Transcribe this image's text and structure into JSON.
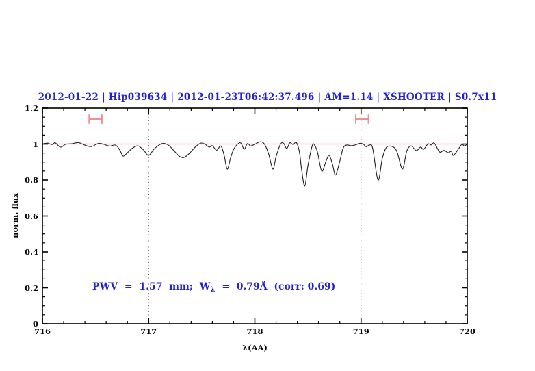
{
  "header": {
    "title": "2012-01-22 | Hip039634 | 2012-01-23T06:42:37.496 | AM=1.14 | XSHOOTER | S0.7x11",
    "color": "#2222cc"
  },
  "annotation": {
    "prefix": "PWV  =  1.57  mm;  W",
    "sub": "λ",
    "suffix": "  =  0.79Å  (corr: 0.69)",
    "color": "#2222cc"
  },
  "chart_data": {
    "type": "line",
    "title": "2012-01-22 | Hip039634 | 2012-01-23T06:42:37.496 | AM=1.14 | XSHOOTER | S0.7x11",
    "xlabel": "λ(AA)",
    "ylabel": "norm. flux",
    "xlim": [
      716,
      720
    ],
    "ylim": [
      0,
      1.2
    ],
    "grid": false,
    "x_ticks": [
      {
        "value": 716,
        "label": "716"
      },
      {
        "value": 717,
        "label": "717"
      },
      {
        "value": 718,
        "label": "718"
      },
      {
        "value": 719,
        "label": "719"
      },
      {
        "value": 720,
        "label": "720"
      }
    ],
    "x_minor_step": 0.2,
    "y_ticks": [
      {
        "value": 0,
        "label": "0"
      },
      {
        "value": 0.2,
        "label": "0.2"
      },
      {
        "value": 0.4,
        "label": "0.4"
      },
      {
        "value": 0.6,
        "label": "0.6"
      },
      {
        "value": 0.8,
        "label": "0.8"
      },
      {
        "value": 1,
        "label": "1"
      },
      {
        "value": 1.2,
        "label": "1.2"
      }
    ],
    "y_minor_step": 0.05,
    "dotted_vlines": {
      "x": [
        717,
        719
      ],
      "color": "#444444"
    },
    "continuum_line": {
      "y": 1.0,
      "color": "#f08080"
    },
    "range_markers": {
      "color": "#f09090",
      "y": 1.139,
      "cap_half_height": 0.026,
      "items": [
        {
          "x1": 716.44,
          "x2": 716.56
        },
        {
          "x1": 718.95,
          "x2": 719.07
        }
      ]
    },
    "series": [
      {
        "name": "normalized-telluric-spectrum",
        "color": "#1c1c1c",
        "points": [
          [
            716.0,
            1.0
          ],
          [
            716.05,
            1.005
          ],
          [
            716.09,
            0.997
          ],
          [
            716.12,
            1.007
          ],
          [
            716.17,
            0.983
          ],
          [
            716.22,
            0.999
          ],
          [
            716.28,
            1.002
          ],
          [
            716.34,
            1.008
          ],
          [
            716.4,
            0.994
          ],
          [
            716.46,
            0.986
          ],
          [
            716.53,
            1.004
          ],
          [
            716.58,
            0.998
          ],
          [
            716.63,
            0.989
          ],
          [
            716.69,
            0.994
          ],
          [
            716.73,
            0.965
          ],
          [
            716.76,
            0.933
          ],
          [
            716.8,
            0.952
          ],
          [
            716.85,
            0.978
          ],
          [
            716.9,
            0.99
          ],
          [
            716.95,
            0.968
          ],
          [
            717.0,
            0.937
          ],
          [
            717.05,
            0.972
          ],
          [
            717.1,
            0.995
          ],
          [
            717.14,
            1.004
          ],
          [
            717.19,
            0.992
          ],
          [
            717.24,
            0.962
          ],
          [
            717.29,
            0.932
          ],
          [
            717.33,
            0.925
          ],
          [
            717.38,
            0.946
          ],
          [
            717.44,
            0.984
          ],
          [
            717.49,
            1.005
          ],
          [
            717.53,
            1.0
          ],
          [
            717.57,
            0.983
          ],
          [
            717.6,
            0.991
          ],
          [
            717.64,
            0.966
          ],
          [
            717.68,
            0.989
          ],
          [
            717.71,
            0.94
          ],
          [
            717.74,
            0.861
          ],
          [
            717.77,
            0.92
          ],
          [
            717.8,
            0.97
          ],
          [
            717.84,
            1.001
          ],
          [
            717.87,
            1.005
          ],
          [
            717.9,
            0.971
          ],
          [
            717.93,
            1.003
          ],
          [
            717.96,
            0.99
          ],
          [
            718.0,
            0.999
          ],
          [
            718.05,
            1.012
          ],
          [
            718.09,
            1.0
          ],
          [
            718.13,
            0.945
          ],
          [
            718.17,
            0.861
          ],
          [
            718.2,
            0.93
          ],
          [
            718.24,
            0.998
          ],
          [
            718.27,
            1.005
          ],
          [
            718.3,
            0.975
          ],
          [
            718.33,
            1.007
          ],
          [
            718.36,
            0.997
          ],
          [
            718.39,
            1.009
          ],
          [
            718.42,
            0.955
          ],
          [
            718.44,
            0.86
          ],
          [
            718.47,
            0.766
          ],
          [
            718.5,
            0.88
          ],
          [
            718.54,
            0.99
          ],
          [
            718.56,
            0.996
          ],
          [
            718.59,
            0.955
          ],
          [
            718.63,
            0.85
          ],
          [
            718.67,
            0.905
          ],
          [
            718.7,
            0.937
          ],
          [
            718.73,
            0.89
          ],
          [
            718.76,
            0.828
          ],
          [
            718.8,
            0.905
          ],
          [
            718.83,
            0.975
          ],
          [
            718.86,
            0.994
          ],
          [
            718.91,
            0.991
          ],
          [
            718.95,
            0.996
          ],
          [
            718.99,
            1.004
          ],
          [
            719.02,
            1.0
          ],
          [
            719.05,
            0.985
          ],
          [
            719.08,
            0.995
          ],
          [
            719.11,
            0.975
          ],
          [
            719.16,
            0.8
          ],
          [
            719.2,
            0.92
          ],
          [
            719.24,
            0.982
          ],
          [
            719.3,
            0.985
          ],
          [
            719.34,
            0.955
          ],
          [
            719.39,
            0.861
          ],
          [
            719.43,
            0.96
          ],
          [
            719.47,
            0.99
          ],
          [
            719.52,
            0.964
          ],
          [
            719.56,
            0.983
          ],
          [
            719.59,
            0.971
          ],
          [
            719.63,
            1.001
          ],
          [
            719.66,
            0.995
          ],
          [
            719.69,
            1.005
          ],
          [
            719.74,
            0.956
          ],
          [
            719.78,
            0.965
          ],
          [
            719.82,
            0.952
          ],
          [
            719.85,
            0.96
          ],
          [
            719.87,
            0.937
          ],
          [
            719.92,
            0.975
          ],
          [
            719.95,
            0.999
          ],
          [
            719.97,
            0.99
          ],
          [
            720.0,
            0.998
          ]
        ]
      }
    ]
  }
}
